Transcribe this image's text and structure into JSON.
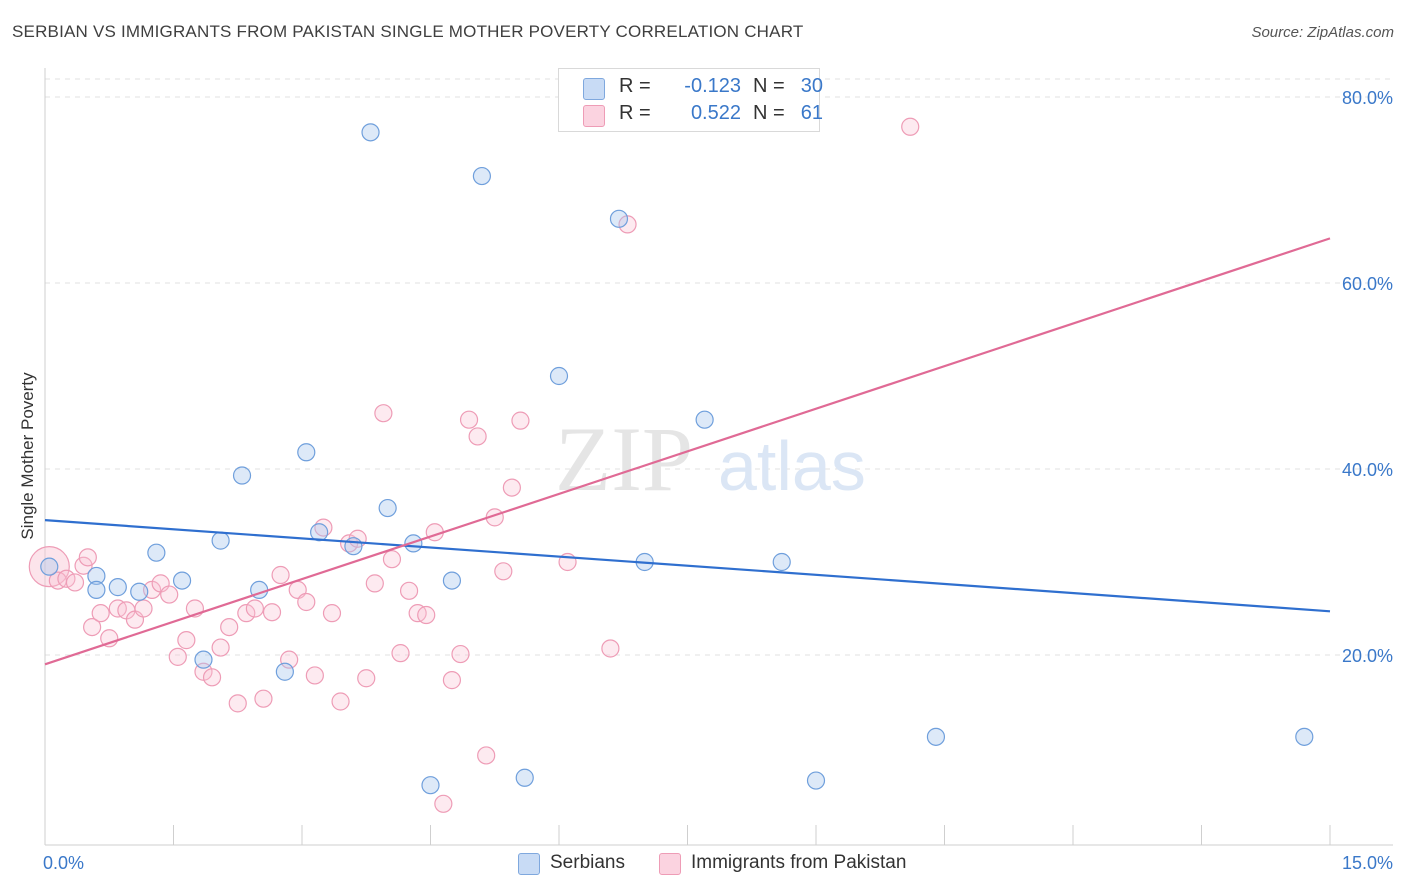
{
  "title": "SERBIAN VS IMMIGRANTS FROM PAKISTAN SINGLE MOTHER POVERTY CORRELATION CHART",
  "source": "Source: ZipAtlas.com",
  "watermark": {
    "zip": "ZIP",
    "atlas": "atlas"
  },
  "legend": {
    "r_label": "R =",
    "n_label": "N =",
    "rows": [
      {
        "r": "-0.123",
        "n": "30",
        "color": "#a9c7ee",
        "border": "#6f9fdc"
      },
      {
        "r": "0.522",
        "n": "61",
        "color": "#f8c3d3",
        "border": "#ea8fab"
      }
    ]
  },
  "colors": {
    "serbians": "#a9c7ee",
    "pakistan": "#f8c3d3",
    "serbians_line": "#2f6fcf",
    "pakistan_line": "#e06a95",
    "tick_text": "#3a78c9"
  },
  "chart_data": {
    "type": "scatter",
    "title": "SERBIAN VS IMMIGRANTS FROM PAKISTAN SINGLE MOTHER POVERTY CORRELATION CHART",
    "xlabel": "",
    "ylabel": "Single Mother Poverty",
    "xlim": [
      0,
      15
    ],
    "ylim": [
      0,
      82
    ],
    "x_tick_labels": [
      "0.0%",
      "15.0%"
    ],
    "y_ticks": [
      20,
      40,
      60,
      80
    ],
    "y_tick_labels": [
      "20.0%",
      "40.0%",
      "60.0%",
      "80.0%"
    ],
    "grid": true,
    "legend_position": "top-center",
    "series": [
      {
        "name": "Serbians",
        "color": "#a9c7ee",
        "points": [
          [
            0.05,
            29.5
          ],
          [
            0.6,
            28.5
          ],
          [
            0.6,
            27.0
          ],
          [
            0.85,
            27.3
          ],
          [
            1.1,
            26.8
          ],
          [
            1.3,
            31.0
          ],
          [
            1.6,
            28.0
          ],
          [
            1.85,
            19.5
          ],
          [
            2.05,
            32.3
          ],
          [
            2.3,
            39.3
          ],
          [
            2.5,
            27.0
          ],
          [
            2.8,
            18.2
          ],
          [
            3.05,
            41.8
          ],
          [
            3.2,
            33.2
          ],
          [
            3.6,
            31.7
          ],
          [
            3.8,
            76.2
          ],
          [
            4.0,
            35.8
          ],
          [
            4.3,
            32.0
          ],
          [
            4.5,
            6.0
          ],
          [
            4.75,
            28.0
          ],
          [
            5.1,
            71.5
          ],
          [
            5.6,
            6.8
          ],
          [
            6.0,
            50.0
          ],
          [
            6.7,
            66.9
          ],
          [
            7.0,
            30.0
          ],
          [
            7.7,
            45.3
          ],
          [
            8.6,
            30.0
          ],
          [
            9.0,
            6.5
          ],
          [
            10.4,
            11.2
          ],
          [
            14.7,
            11.2
          ]
        ]
      },
      {
        "name": "Immigrants from Pakistan",
        "color": "#f8c3d3",
        "points": [
          [
            0.05,
            29.5
          ],
          [
            0.15,
            28.0
          ],
          [
            0.25,
            28.2
          ],
          [
            0.35,
            27.8
          ],
          [
            0.45,
            29.6
          ],
          [
            0.55,
            23.0
          ],
          [
            0.65,
            24.5
          ],
          [
            0.75,
            21.8
          ],
          [
            0.85,
            25.0
          ],
          [
            0.95,
            24.8
          ],
          [
            1.05,
            23.8
          ],
          [
            1.15,
            25.0
          ],
          [
            1.25,
            27.0
          ],
          [
            1.35,
            27.7
          ],
          [
            1.45,
            26.5
          ],
          [
            1.55,
            19.8
          ],
          [
            1.65,
            21.6
          ],
          [
            1.75,
            25.0
          ],
          [
            1.85,
            18.2
          ],
          [
            1.95,
            17.6
          ],
          [
            2.05,
            20.8
          ],
          [
            2.15,
            23.0
          ],
          [
            2.25,
            14.8
          ],
          [
            2.35,
            24.5
          ],
          [
            2.45,
            25.0
          ],
          [
            2.55,
            15.3
          ],
          [
            2.65,
            24.6
          ],
          [
            2.75,
            28.6
          ],
          [
            2.85,
            19.5
          ],
          [
            2.95,
            27.0
          ],
          [
            3.05,
            25.7
          ],
          [
            3.15,
            17.8
          ],
          [
            3.25,
            33.7
          ],
          [
            3.35,
            24.5
          ],
          [
            3.45,
            15.0
          ],
          [
            3.55,
            32.0
          ],
          [
            3.65,
            32.5
          ],
          [
            3.75,
            17.5
          ],
          [
            3.85,
            27.7
          ],
          [
            3.95,
            46.0
          ],
          [
            4.05,
            30.3
          ],
          [
            4.15,
            20.2
          ],
          [
            4.25,
            26.9
          ],
          [
            4.35,
            24.5
          ],
          [
            4.45,
            24.3
          ],
          [
            4.55,
            33.2
          ],
          [
            4.65,
            4.0
          ],
          [
            4.75,
            17.3
          ],
          [
            4.85,
            20.1
          ],
          [
            4.95,
            45.3
          ],
          [
            5.05,
            43.5
          ],
          [
            5.15,
            9.2
          ],
          [
            5.25,
            34.8
          ],
          [
            5.35,
            29.0
          ],
          [
            5.45,
            38.0
          ],
          [
            5.55,
            45.2
          ],
          [
            6.1,
            30.0
          ],
          [
            6.6,
            20.7
          ],
          [
            6.8,
            66.3
          ],
          [
            10.1,
            76.8
          ],
          [
            0.5,
            30.5
          ]
        ]
      }
    ],
    "trend_lines": [
      {
        "name": "Serbians",
        "x": [
          0,
          15
        ],
        "y": [
          34.5,
          24.7
        ]
      },
      {
        "name": "Immigrants from Pakistan",
        "x": [
          0,
          15
        ],
        "y": [
          19.0,
          64.8
        ]
      }
    ]
  }
}
